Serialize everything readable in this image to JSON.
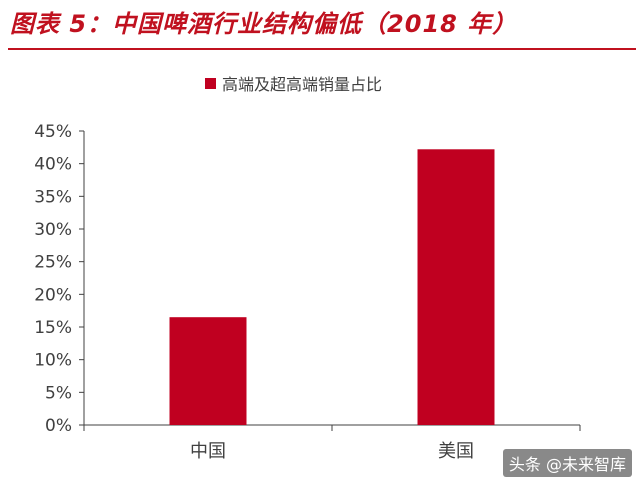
{
  "title": "图表 5：中国啤酒行业结构偏低（2018 年）",
  "watermark": "头条 @未来智库",
  "colors": {
    "title": "#c0111f",
    "bar": "#c00020",
    "axis": "#404040"
  },
  "chart_data": {
    "type": "bar",
    "categories": [
      "中国",
      "美国"
    ],
    "series": [
      {
        "name": "高端及超高端销量占比",
        "values": [
          16.5,
          42.2
        ],
        "color": "#c00020"
      }
    ],
    "ylim": [
      0,
      45
    ],
    "yticks": [
      "0%",
      "5%",
      "10%",
      "15%",
      "20%",
      "25%",
      "30%",
      "35%",
      "40%",
      "45%"
    ],
    "ytick_values": [
      0,
      5,
      10,
      15,
      20,
      25,
      30,
      35,
      40,
      45
    ],
    "y_unit": "%",
    "legend_position": "top",
    "grid": false
  }
}
